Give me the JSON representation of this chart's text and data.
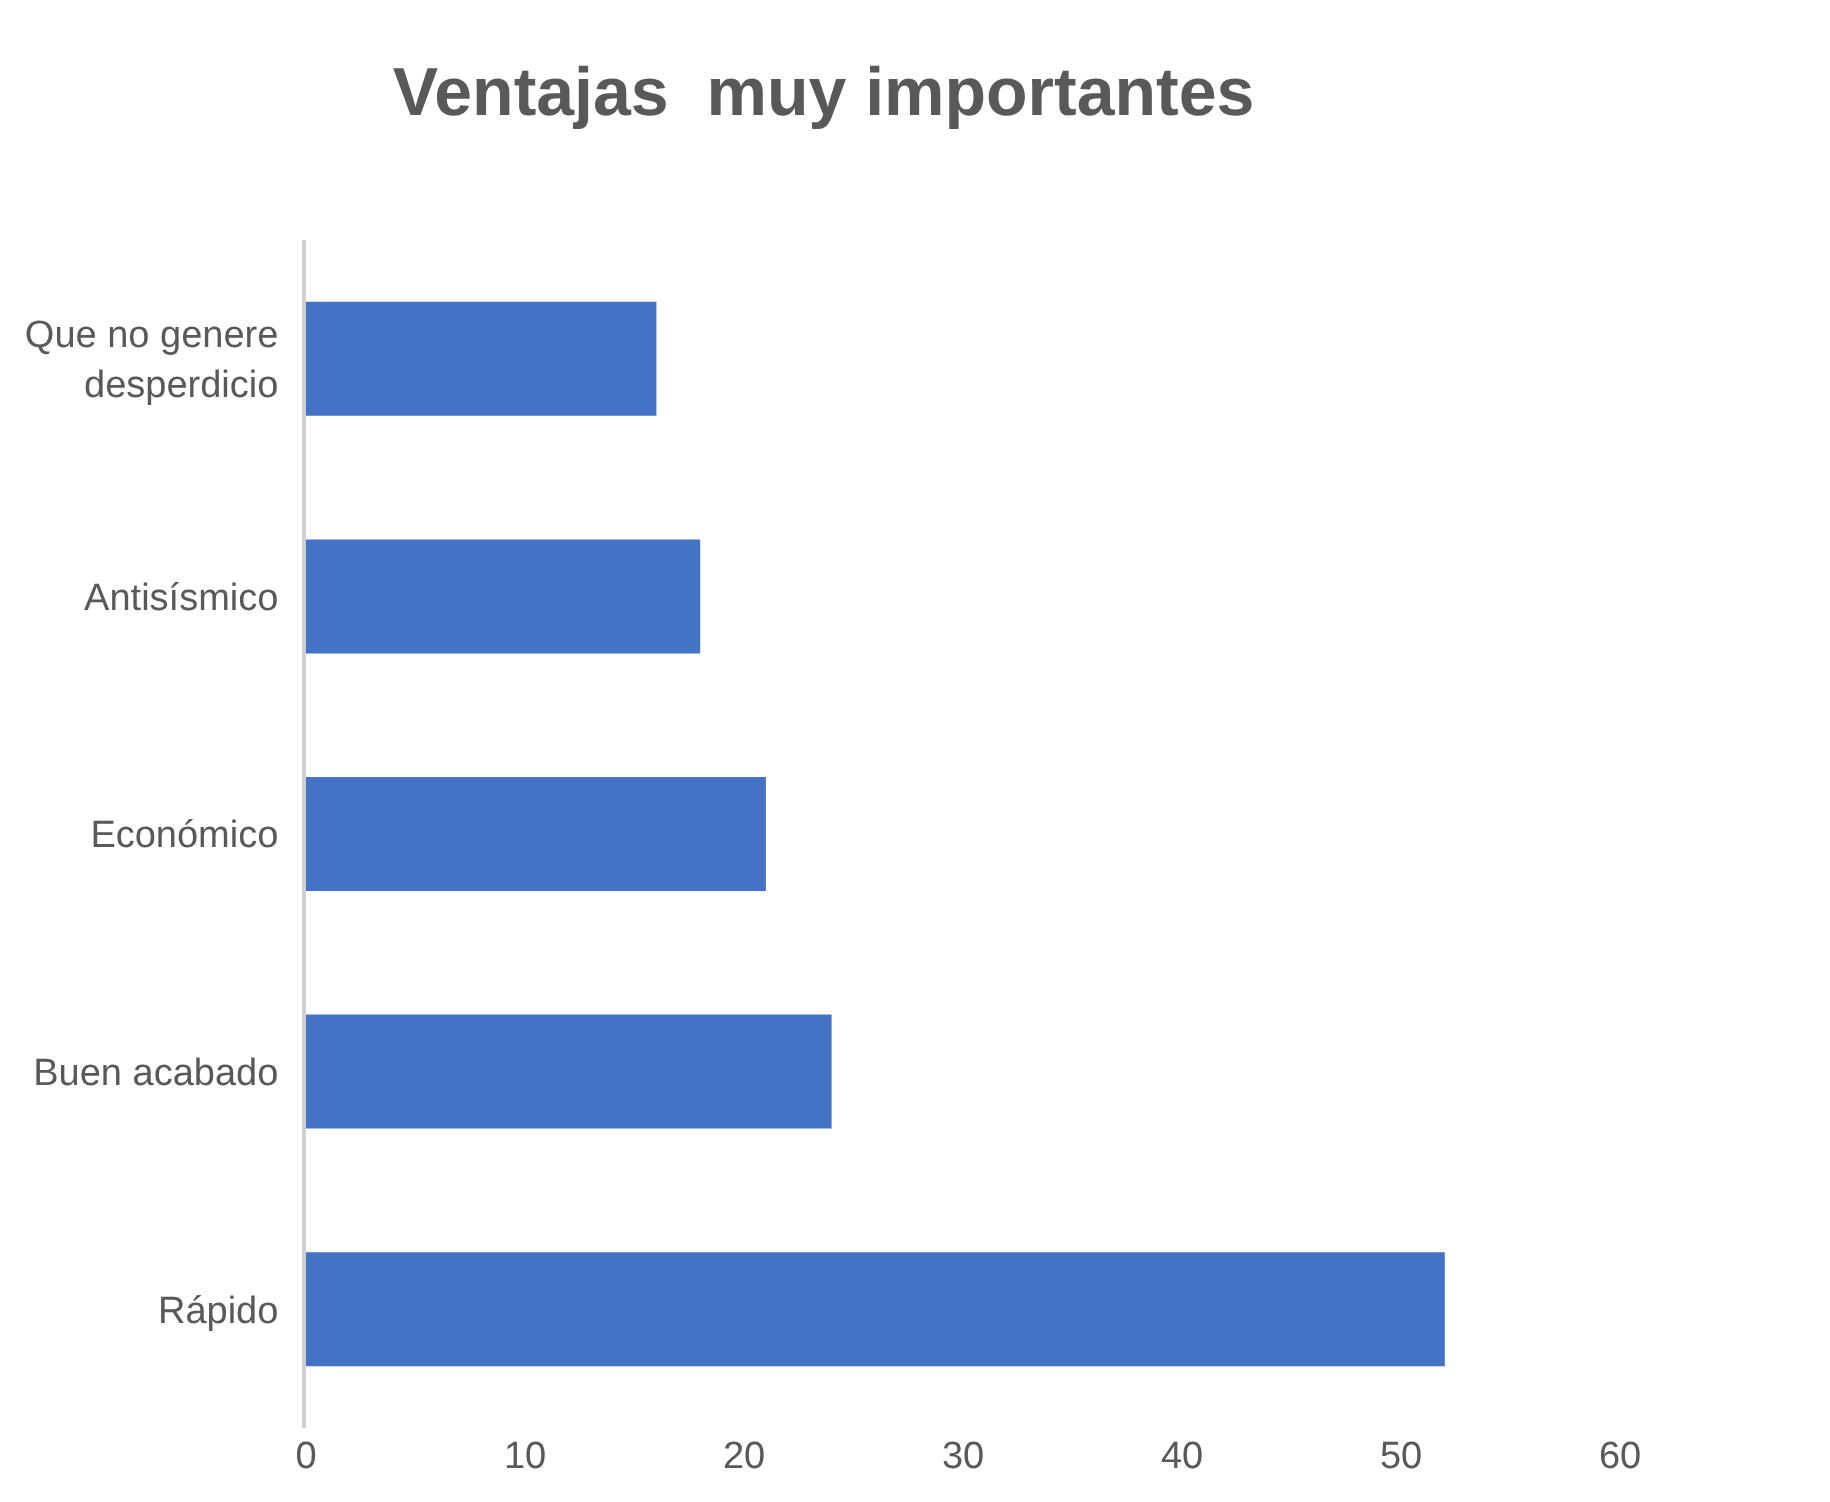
{
  "chart_data": {
    "type": "bar",
    "orientation": "horizontal",
    "title": "Ventajas  muy importantes",
    "categories": [
      "Que no genere desperdicio",
      "Antisísmico",
      "Económico",
      "Buen acabado",
      "Rápido"
    ],
    "values": [
      16,
      18,
      21,
      24,
      52
    ],
    "color": "#4472c4",
    "xlim": [
      0,
      60
    ],
    "xticks": [
      0,
      10,
      20,
      30,
      40,
      50,
      60
    ]
  }
}
